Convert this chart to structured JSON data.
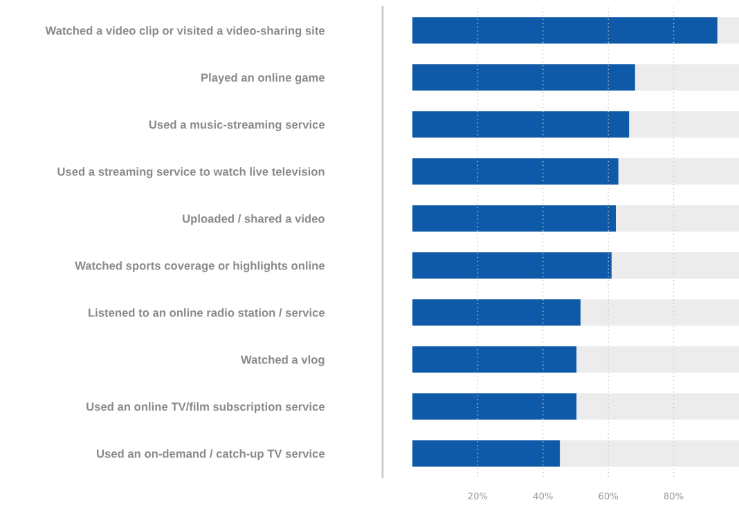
{
  "chart_data": {
    "type": "bar",
    "orientation": "horizontal",
    "stacked": true,
    "categories": [
      "Watched a video clip or visited a video-sharing site",
      "Played an online game",
      "Used a music-streaming service",
      "Used a streaming service to watch live television",
      "Uploaded / shared a video",
      "Watched sports coverage or highlights online",
      "Listened to an online radio station / service",
      "Watched a vlog",
      "Used an online TV/film subscription service",
      "Used an on-demand / catch-up TV service"
    ],
    "series": [
      {
        "color": "#0f5aa8",
        "values": [
          93.4,
          68.2,
          66.4,
          63.1,
          62.3,
          61.0,
          51.5,
          50.3,
          50.3,
          45.2
        ]
      },
      {
        "color": "#ececec",
        "values": [
          6.6,
          31.8,
          33.6,
          36.9,
          37.7,
          39.0,
          48.5,
          49.7,
          49.7,
          54.8
        ]
      }
    ],
    "xlim": [
      0,
      100
    ],
    "xticks": [
      {
        "value": 20,
        "label": "20%"
      },
      {
        "value": 40,
        "label": "40%"
      },
      {
        "value": 60,
        "label": "60%"
      },
      {
        "value": 80,
        "label": "80%"
      }
    ],
    "grid": "x"
  }
}
